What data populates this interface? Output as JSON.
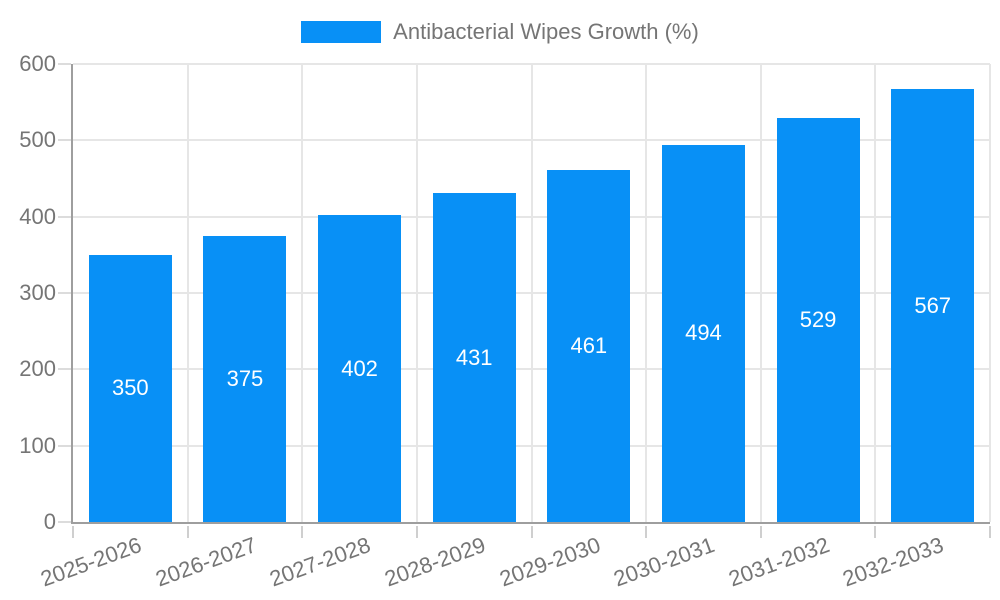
{
  "legend": {
    "label": "Antibacterial Wipes Growth (%)"
  },
  "colors": {
    "bar": "#0890f6",
    "bar_label_text": "#ffffff",
    "axis_text": "#757575",
    "legend_text": "#757575",
    "axis_line": "#9e9e9e",
    "gridline": "#e6e6e6"
  },
  "chart_data": {
    "type": "bar",
    "title": "",
    "xlabel": "",
    "ylabel": "",
    "legend_entries": [
      "Antibacterial Wipes Growth (%)"
    ],
    "legend_position": "top-center",
    "grid": true,
    "categories": [
      "2025-2026",
      "2026-2027",
      "2027-2028",
      "2028-2029",
      "2029-2030",
      "2030-2031",
      "2031-2032",
      "2032-2033"
    ],
    "values": [
      350,
      375,
      402,
      431,
      461,
      494,
      529,
      567
    ],
    "bar_value_labels": [
      "350",
      "375",
      "402",
      "431",
      "461",
      "494",
      "529",
      "567"
    ],
    "ylim": [
      0,
      600
    ],
    "yticks": [
      0,
      100,
      200,
      300,
      400,
      500,
      600
    ],
    "ytick_labels": [
      "0",
      "100",
      "200",
      "300",
      "400",
      "500",
      "600"
    ]
  }
}
